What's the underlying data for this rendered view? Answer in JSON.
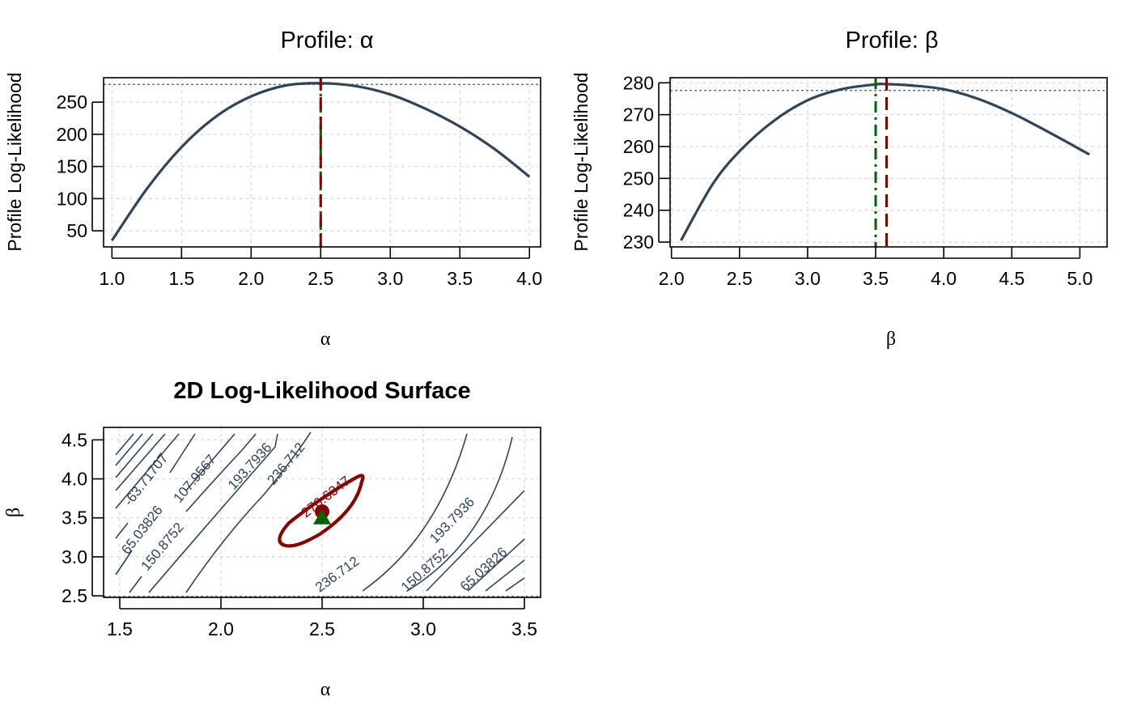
{
  "colors": {
    "curve": "#2f4459",
    "mle": "#8b0000",
    "truth": "#006400",
    "grid": "#d9d9d9",
    "ref": "#555555"
  },
  "chart_data": [
    {
      "type": "line",
      "title": "Profile: α",
      "xlabel": "α",
      "ylabel": "Profile Log-Likelihood",
      "xlim": [
        0.94,
        4.08
      ],
      "ylim": [
        25,
        288
      ],
      "xticks": [
        "1.0",
        "1.5",
        "2.0",
        "2.5",
        "3.0",
        "3.5",
        "4.0"
      ],
      "yticks": [
        "50",
        "100",
        "150",
        "200",
        "250"
      ],
      "grid": true,
      "series": [
        {
          "x": [
            1.0,
            1.25,
            1.5,
            1.75,
            2.0,
            2.25,
            2.5,
            2.75,
            3.0,
            3.25,
            3.5,
            3.75,
            4.0
          ],
          "y": [
            35,
            115,
            180,
            228,
            259,
            276,
            279.5,
            275,
            262,
            240,
            212,
            177,
            134
          ]
        }
      ],
      "reference_line_y": 277.6,
      "mle_x": 2.5,
      "true_x": 2.5
    },
    {
      "type": "line",
      "title": "Profile: β",
      "xlabel": "β",
      "ylabel": "Profile Log-Likelihood",
      "xlim": [
        1.99,
        5.2
      ],
      "ylim": [
        228.5,
        281.6
      ],
      "xticks": [
        "2.0",
        "2.5",
        "3.0",
        "3.5",
        "4.0",
        "4.5",
        "5.0"
      ],
      "yticks": [
        "230",
        "240",
        "250",
        "260",
        "270",
        "280"
      ],
      "grid": true,
      "series": [
        {
          "x": [
            2.07,
            2.3,
            2.5,
            2.75,
            3.0,
            3.25,
            3.5,
            3.57,
            3.75,
            4.0,
            4.25,
            4.5,
            4.75,
            5.07
          ],
          "y": [
            230.5,
            248,
            258.5,
            268,
            274.5,
            278,
            279.5,
            279.6,
            279.2,
            278,
            275,
            270.5,
            265,
            257.5
          ]
        }
      ],
      "reference_line_y": 277.6,
      "mle_x": 3.58,
      "true_x": 3.5
    },
    {
      "type": "contour",
      "title": "2D Log-Likelihood Surface",
      "xlabel": "α",
      "ylabel": "β",
      "xlim": [
        1.42,
        3.58
      ],
      "ylim": [
        2.48,
        4.66
      ],
      "xticks": [
        "1.5",
        "2.0",
        "2.5",
        "3.0",
        "3.5"
      ],
      "yticks": [
        "2.5",
        "3.0",
        "3.5",
        "4.0",
        "4.5"
      ],
      "grid": true,
      "contour_labels": [
        "-63.71707",
        "65.03826",
        "107.9567",
        "150.8752",
        "193.7936",
        "236.712",
        "276.6347",
        "236.712",
        "193.7936",
        "150.8752",
        "65.03826"
      ],
      "mle_point": [
        2.5,
        3.58
      ],
      "true_point": [
        2.5,
        3.5
      ]
    }
  ]
}
